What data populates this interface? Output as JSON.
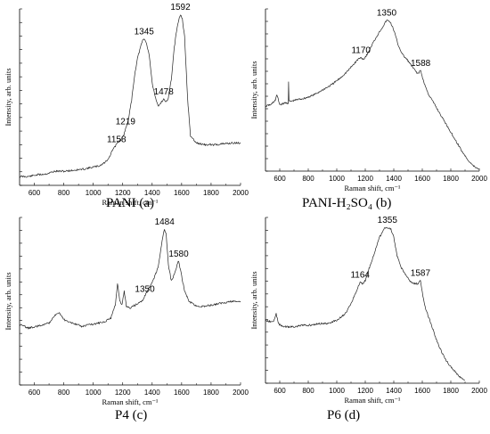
{
  "chart_data": [
    {
      "type": "line",
      "caption": "PANI (a)",
      "xlabel": "Raman shift, cm⁻¹",
      "ylabel": "Intensity, arb. units",
      "xlim": [
        500,
        2000
      ],
      "ylim": [
        0,
        1
      ],
      "xticks": [
        600,
        800,
        1000,
        1200,
        1400,
        1600,
        1800,
        2000
      ],
      "yticks": 13,
      "series": [
        {
          "x": [
            500,
            560,
            620,
            680,
            740,
            770,
            800,
            860,
            920,
            980,
            1040,
            1080,
            1110,
            1130,
            1150,
            1160,
            1175,
            1190,
            1205,
            1220,
            1240,
            1260,
            1280,
            1300,
            1320,
            1335,
            1345,
            1360,
            1380,
            1400,
            1420,
            1440,
            1460,
            1478,
            1495,
            1510,
            1530,
            1550,
            1570,
            1585,
            1592,
            1605,
            1620,
            1640,
            1660,
            1700,
            1760,
            1820,
            1880,
            1940,
            2000
          ],
          "y": [
            0.05,
            0.05,
            0.06,
            0.065,
            0.08,
            0.08,
            0.08,
            0.085,
            0.09,
            0.1,
            0.11,
            0.13,
            0.16,
            0.2,
            0.22,
            0.24,
            0.25,
            0.26,
            0.28,
            0.32,
            0.38,
            0.48,
            0.62,
            0.72,
            0.78,
            0.82,
            0.83,
            0.81,
            0.74,
            0.58,
            0.5,
            0.45,
            0.47,
            0.49,
            0.47,
            0.5,
            0.6,
            0.78,
            0.9,
            0.95,
            0.97,
            0.94,
            0.84,
            0.5,
            0.28,
            0.24,
            0.23,
            0.23,
            0.235,
            0.24,
            0.24
          ]
        }
      ],
      "annotations": [
        {
          "text": "1158",
          "x": 1158,
          "y": 0.22
        },
        {
          "text": "1219",
          "x": 1219,
          "y": 0.32
        },
        {
          "text": "1345",
          "x": 1345,
          "y": 0.83
        },
        {
          "text": "1478",
          "x": 1478,
          "y": 0.49
        },
        {
          "text": "1592",
          "x": 1592,
          "y": 0.97
        }
      ]
    },
    {
      "type": "line",
      "caption": "PANI-H₂SO₄ (b)",
      "xlabel": "Raman shift, cm⁻¹",
      "ylabel": "Intensity, arb. units",
      "xlim": [
        500,
        2000
      ],
      "ylim": [
        0,
        1
      ],
      "xticks": [
        600,
        800,
        1000,
        1200,
        1400,
        1600,
        1800,
        2000
      ],
      "yticks": 13,
      "series": [
        {
          "x": [
            500,
            540,
            570,
            580,
            600,
            640,
            660,
            662,
            665,
            680,
            720,
            780,
            840,
            900,
            960,
            1020,
            1080,
            1120,
            1150,
            1170,
            1190,
            1220,
            1260,
            1300,
            1330,
            1350,
            1375,
            1400,
            1430,
            1460,
            1500,
            1540,
            1570,
            1588,
            1610,
            1640,
            1680,
            1720,
            1760,
            1800,
            1840,
            1880,
            1920,
            1960,
            2000
          ],
          "y": [
            0.4,
            0.41,
            0.44,
            0.47,
            0.41,
            0.42,
            0.42,
            0.55,
            0.43,
            0.43,
            0.44,
            0.45,
            0.47,
            0.5,
            0.53,
            0.57,
            0.62,
            0.66,
            0.69,
            0.7,
            0.69,
            0.73,
            0.8,
            0.86,
            0.9,
            0.93,
            0.92,
            0.87,
            0.78,
            0.72,
            0.68,
            0.63,
            0.6,
            0.62,
            0.55,
            0.48,
            0.42,
            0.36,
            0.3,
            0.24,
            0.18,
            0.12,
            0.07,
            0.03,
            0.01
          ]
        }
      ],
      "annotations": [
        {
          "text": "1170",
          "x": 1170,
          "y": 0.7
        },
        {
          "text": "1350",
          "x": 1350,
          "y": 0.93
        },
        {
          "text": "1588",
          "x": 1588,
          "y": 0.62
        }
      ]
    },
    {
      "type": "line",
      "caption": "P4 (c)",
      "xlabel": "Raman shift, cm⁻¹",
      "ylabel": "Intensity, arb. units",
      "xlim": [
        500,
        2000
      ],
      "ylim": [
        0,
        1
      ],
      "xticks": [
        600,
        800,
        1000,
        1200,
        1400,
        1600,
        1800,
        2000
      ],
      "yticks": 13,
      "series": [
        {
          "x": [
            500,
            560,
            620,
            700,
            740,
            770,
            800,
            860,
            920,
            980,
            1040,
            1080,
            1120,
            1150,
            1165,
            1180,
            1195,
            1210,
            1225,
            1250,
            1290,
            1330,
            1350,
            1380,
            1410,
            1440,
            1460,
            1475,
            1484,
            1495,
            1510,
            1530,
            1550,
            1570,
            1580,
            1600,
            1620,
            1650,
            1700,
            1760,
            1820,
            1880,
            1940,
            2000
          ],
          "y": [
            0.36,
            0.34,
            0.35,
            0.37,
            0.42,
            0.43,
            0.39,
            0.37,
            0.35,
            0.36,
            0.37,
            0.38,
            0.4,
            0.48,
            0.61,
            0.5,
            0.48,
            0.56,
            0.47,
            0.46,
            0.48,
            0.5,
            0.53,
            0.58,
            0.63,
            0.7,
            0.82,
            0.9,
            0.93,
            0.9,
            0.72,
            0.62,
            0.66,
            0.72,
            0.74,
            0.65,
            0.56,
            0.5,
            0.47,
            0.47,
            0.48,
            0.49,
            0.5,
            0.5
          ]
        }
      ],
      "annotations": [
        {
          "text": "1350",
          "x": 1350,
          "y": 0.53
        },
        {
          "text": "1484",
          "x": 1484,
          "y": 0.93
        },
        {
          "text": "1580",
          "x": 1580,
          "y": 0.74
        }
      ]
    },
    {
      "type": "line",
      "caption": "P6 (d)",
      "xlabel": "Raman shift, cm⁻¹",
      "ylabel": "Intensity, arb. units",
      "xlim": [
        500,
        2000
      ],
      "ylim": [
        0,
        1
      ],
      "xticks": [
        600,
        800,
        1000,
        1200,
        1400,
        1600,
        1800,
        2000
      ],
      "yticks": 13,
      "series": [
        {
          "x": [
            500,
            540,
            560,
            575,
            590,
            620,
            660,
            700,
            760,
            820,
            880,
            940,
            1000,
            1060,
            1100,
            1140,
            1164,
            1180,
            1200,
            1230,
            1270,
            1300,
            1330,
            1355,
            1380,
            1400,
            1420,
            1450,
            1480,
            1510,
            1540,
            1570,
            1587,
            1600,
            1620,
            1660,
            1700,
            1740,
            1780,
            1820,
            1860,
            1900
          ],
          "y": [
            0.38,
            0.37,
            0.38,
            0.42,
            0.36,
            0.34,
            0.34,
            0.34,
            0.35,
            0.35,
            0.36,
            0.36,
            0.38,
            0.42,
            0.48,
            0.56,
            0.61,
            0.6,
            0.62,
            0.7,
            0.8,
            0.88,
            0.93,
            0.94,
            0.93,
            0.88,
            0.78,
            0.7,
            0.66,
            0.62,
            0.6,
            0.6,
            0.62,
            0.55,
            0.46,
            0.36,
            0.26,
            0.18,
            0.12,
            0.08,
            0.04,
            0.02
          ]
        }
      ],
      "annotations": [
        {
          "text": "1164",
          "x": 1164,
          "y": 0.61
        },
        {
          "text": "1355",
          "x": 1355,
          "y": 0.94
        },
        {
          "text": "1587",
          "x": 1587,
          "y": 0.62
        }
      ]
    }
  ]
}
